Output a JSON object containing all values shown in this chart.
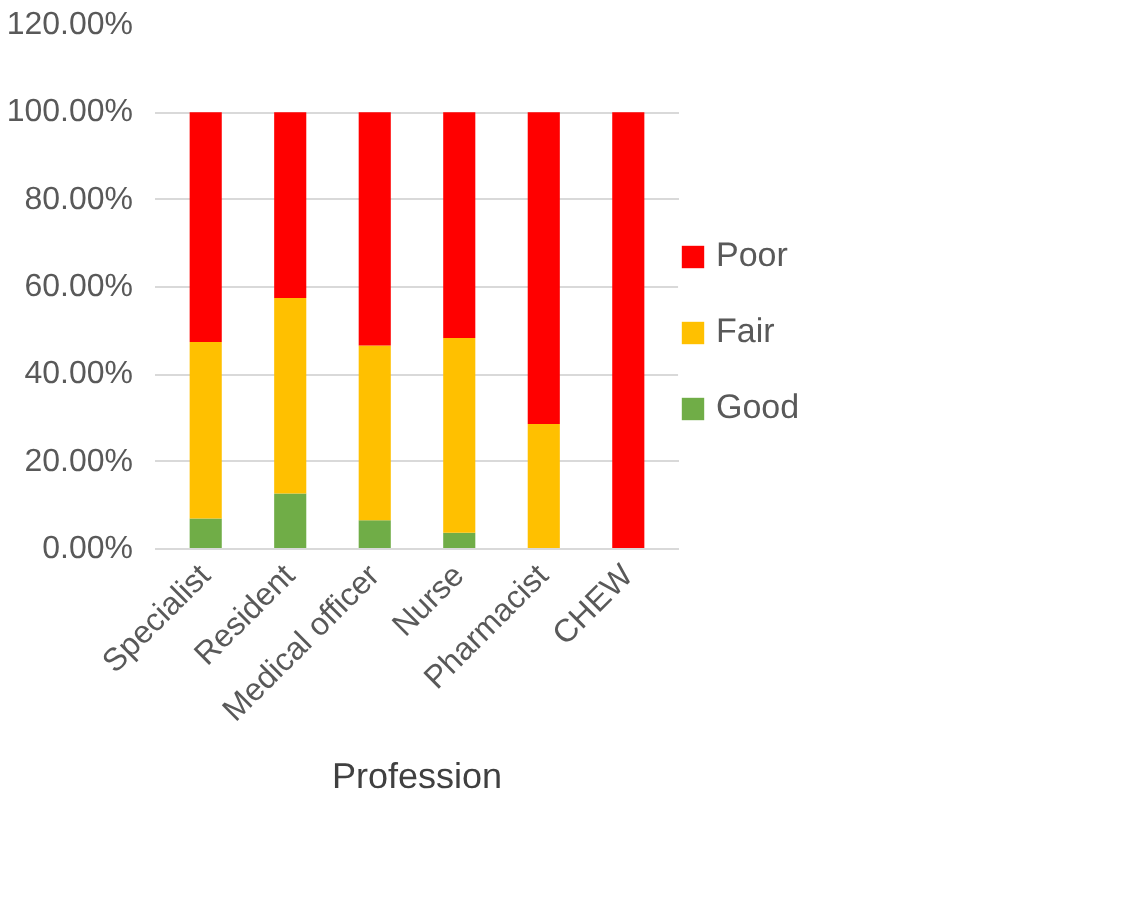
{
  "chart_data": {
    "type": "bar",
    "stacked": true,
    "xlabel": "Profession",
    "categories": [
      "Specialist",
      "Resident",
      "Medical officer",
      "Nurse",
      "Pharmacist",
      "CHEW"
    ],
    "series": [
      {
        "name": "Good",
        "color": "#70ad47",
        "values": [
          7.0,
          12.7,
          6.6,
          3.7,
          0,
          0
        ]
      },
      {
        "name": "Fair",
        "color": "#ffc000",
        "values": [
          40.4,
          44.8,
          40.0,
          44.6,
          28.6,
          0
        ]
      },
      {
        "name": "Poor",
        "color": "#ff0000",
        "values": [
          52.6,
          42.5,
          53.4,
          51.7,
          71.4,
          100
        ]
      }
    ],
    "ylim": [
      0,
      120
    ],
    "yticks": [
      {
        "value": 0,
        "label": "0.00%"
      },
      {
        "value": 20,
        "label": "20.00%"
      },
      {
        "value": 40,
        "label": "40.00%"
      },
      {
        "value": 60,
        "label": "60.00%"
      },
      {
        "value": 80,
        "label": "80.00%"
      },
      {
        "value": 100,
        "label": "100.00%"
      },
      {
        "value": 120,
        "label": "120.00%"
      }
    ],
    "grid": "y",
    "legend": "right"
  }
}
